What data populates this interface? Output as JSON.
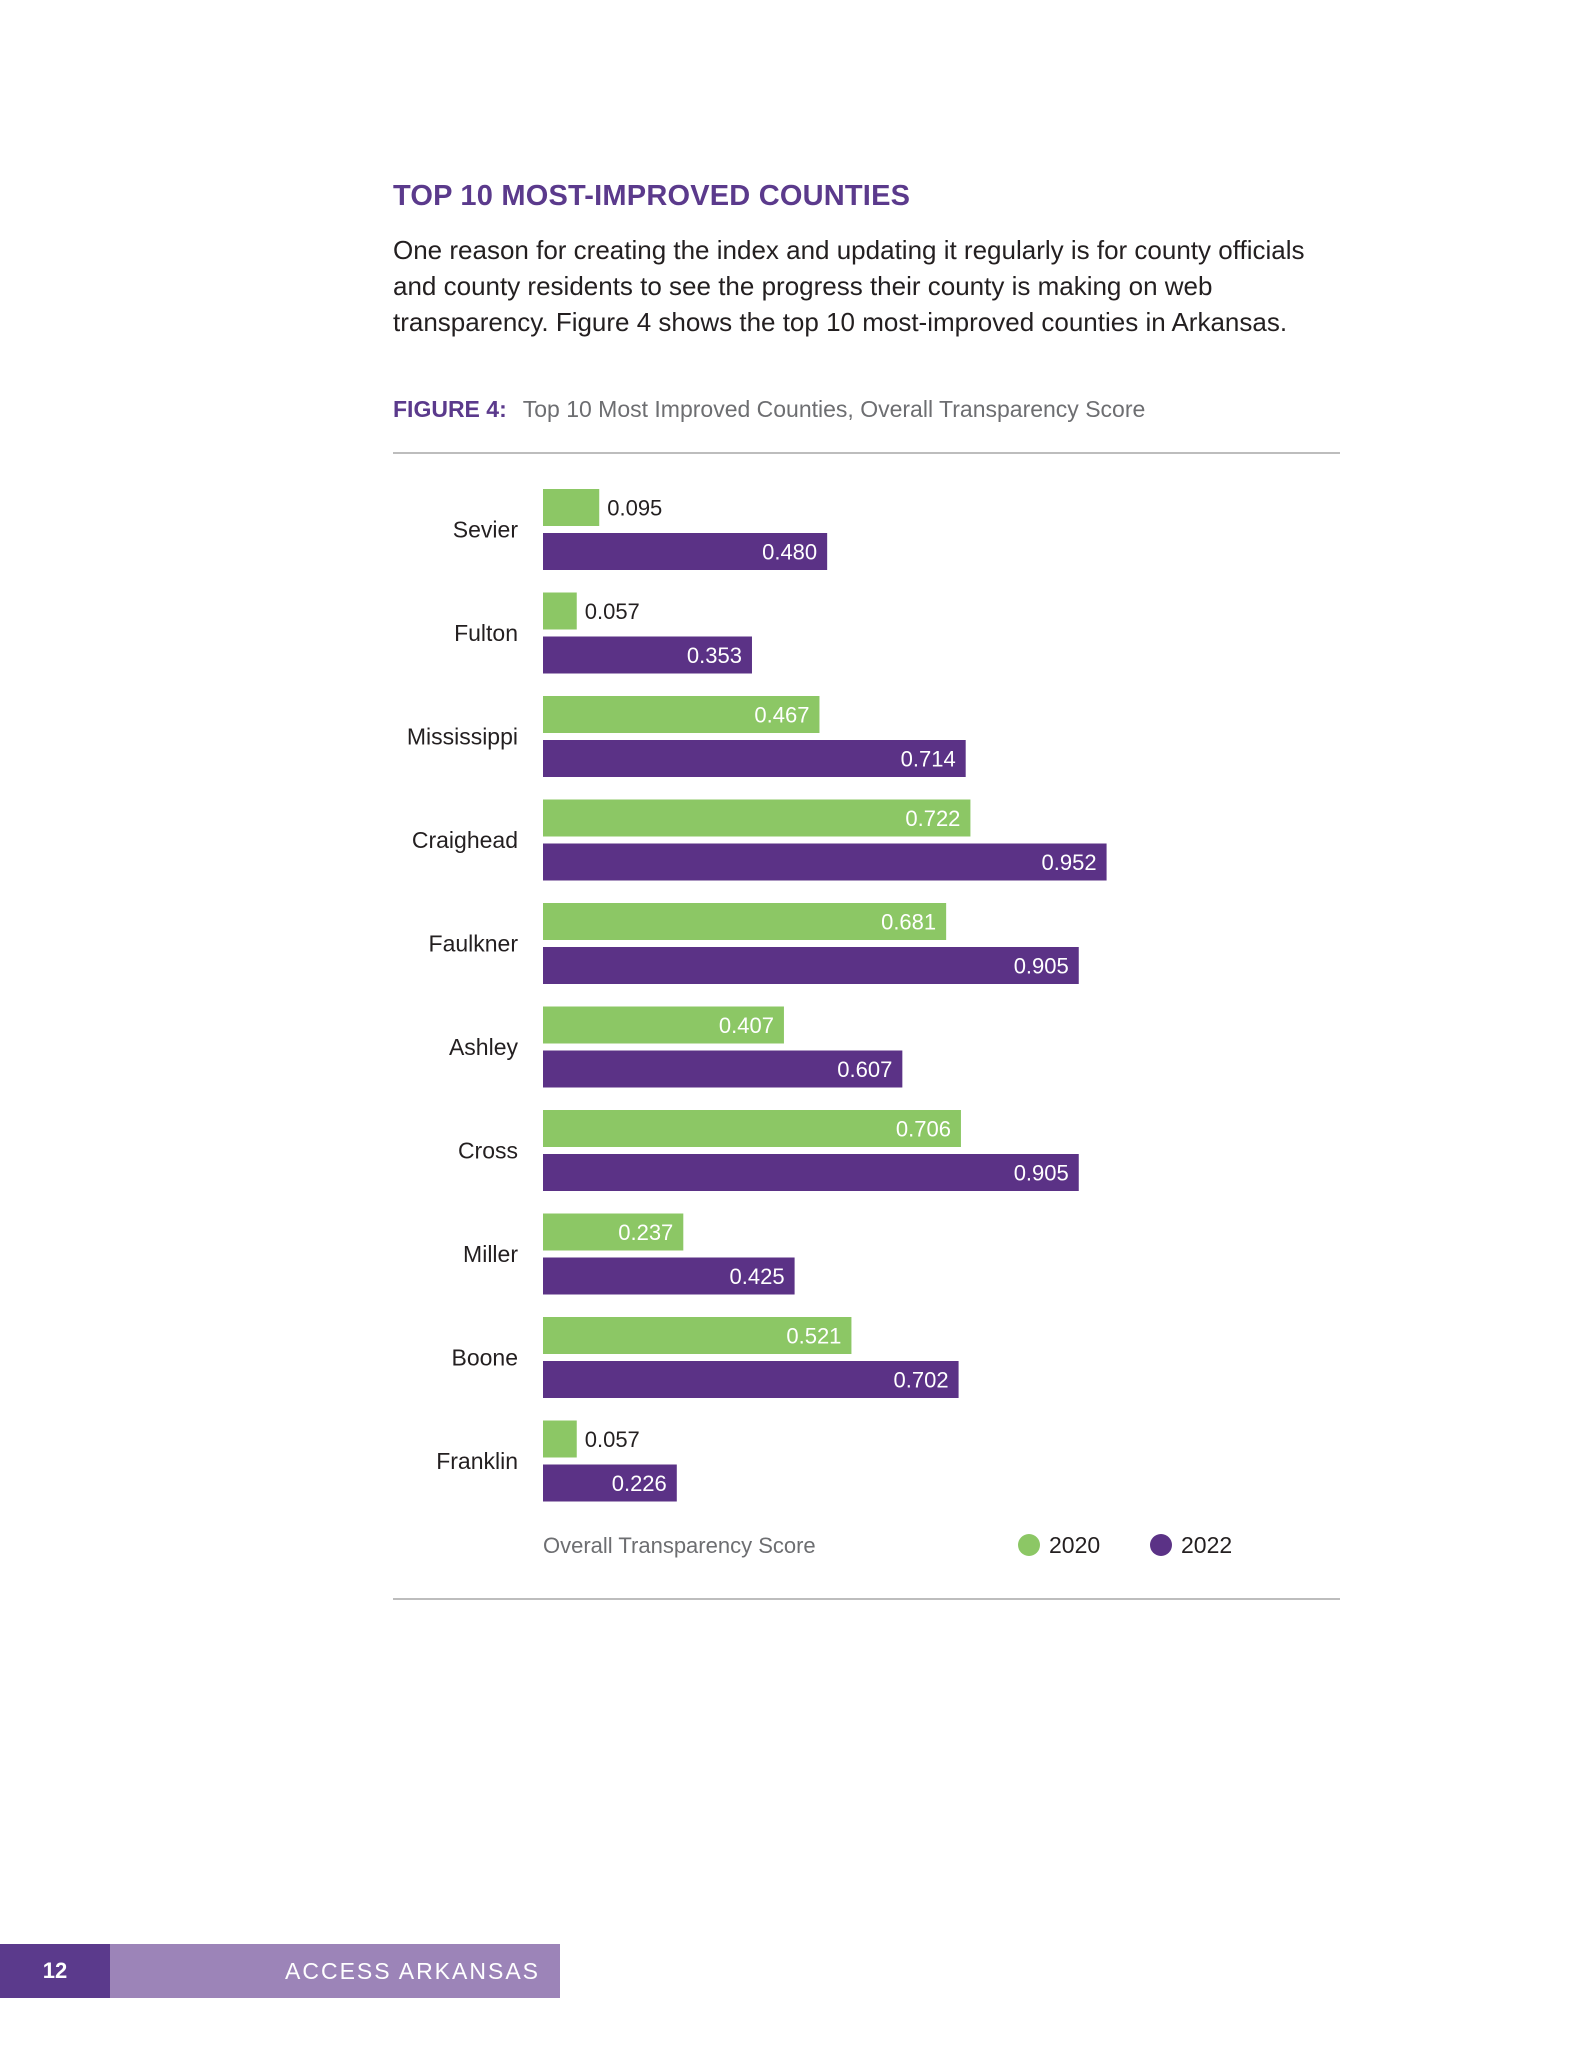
{
  "section": {
    "title": "TOP 10 MOST-IMPROVED COUNTIES",
    "intro": "One reason for creating the index and updating it regularly is for county officials and county residents to see the progress their county is making on web transparency. Figure 4 shows the top 10 most-improved counties in Arkansas."
  },
  "figure": {
    "label": "FIGURE 4:",
    "caption": "Top 10 Most Improved Counties, Overall Transparency Score"
  },
  "colors": {
    "series_2020": "#8cc765",
    "series_2022": "#5b3286",
    "accent": "#5b3a8c"
  },
  "chart_data": {
    "type": "bar",
    "orientation": "horizontal",
    "title": "",
    "xlabel": "Overall Transparency Score",
    "ylabel": "",
    "xlim": [
      0,
      1.0
    ],
    "legend_position": "bottom-right",
    "grid": false,
    "categories": [
      "Sevier",
      "Fulton",
      "Mississippi",
      "Craighead",
      "Faulkner",
      "Ashley",
      "Cross",
      "Miller",
      "Boone",
      "Franklin"
    ],
    "series": [
      {
        "name": "2020",
        "color": "#8cc765",
        "values": [
          0.095,
          0.057,
          0.467,
          0.722,
          0.681,
          0.407,
          0.706,
          0.237,
          0.521,
          0.057
        ]
      },
      {
        "name": "2022",
        "color": "#5b3286",
        "values": [
          0.48,
          0.353,
          0.714,
          0.952,
          0.905,
          0.607,
          0.905,
          0.425,
          0.702,
          0.226
        ]
      }
    ]
  },
  "footer": {
    "page_number": "12",
    "publication": "ACCESS ARKANSAS"
  }
}
